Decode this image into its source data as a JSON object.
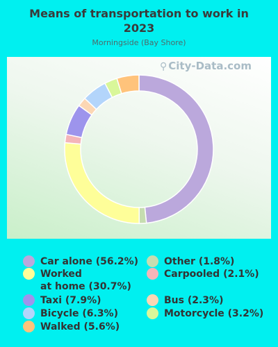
{
  "chart_data": {
    "type": "pie",
    "style": "donut",
    "title": "Means of transportation to work in 2023",
    "subtitle": "Morningside (Bay Shore)",
    "legend_position": "bottom",
    "slices": [
      {
        "label": "Car alone (56.2%)",
        "value": 56.2,
        "color": "#bba8dc"
      },
      {
        "label": "Other (1.8%)",
        "value": 1.8,
        "color": "#c6ddb0"
      },
      {
        "label": "Worked\nat home (30.7%)",
        "value": 30.7,
        "color": "#fefe99"
      },
      {
        "label": "Carpooled (2.1%)",
        "value": 2.1,
        "color": "#f4b5b9"
      },
      {
        "label": "Taxi (7.9%)",
        "value": 7.9,
        "color": "#9d94ec"
      },
      {
        "label": "Bus (2.3%)",
        "value": 2.3,
        "color": "#fcd7b4"
      },
      {
        "label": "Bicycle (6.3%)",
        "value": 6.3,
        "color": "#b3d5fb"
      },
      {
        "label": "Motorcycle (3.2%)",
        "value": 3.2,
        "color": "#d9f79a"
      },
      {
        "label": "Walked (5.6%)",
        "value": 5.6,
        "color": "#ffc37b"
      }
    ]
  },
  "watermark": {
    "text": "City-Data.com",
    "icon": "search-icon"
  }
}
